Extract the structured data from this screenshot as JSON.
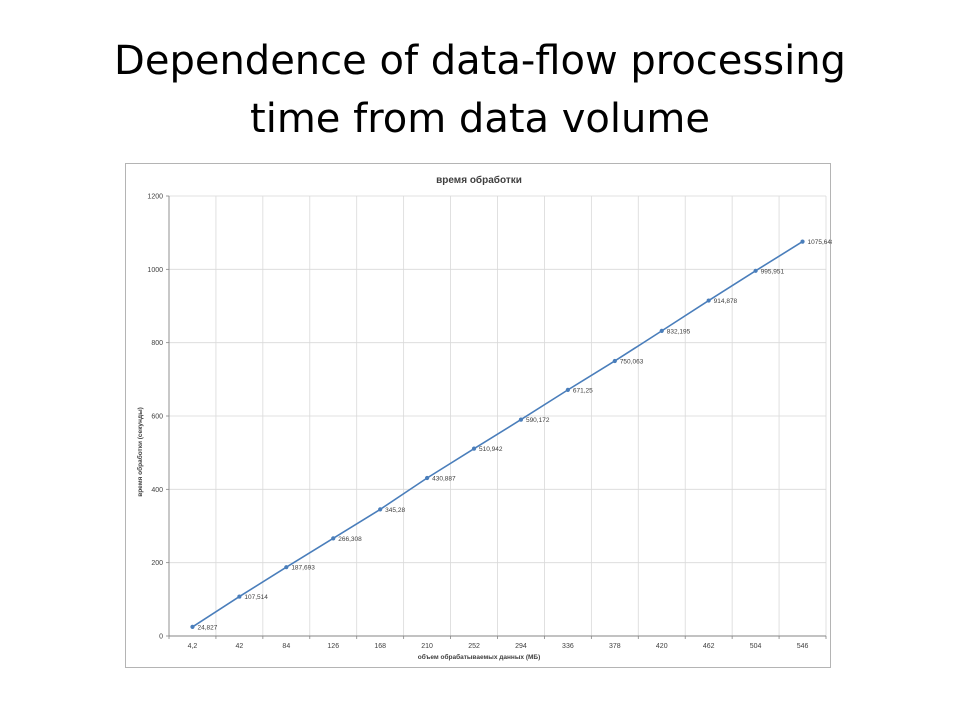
{
  "slide": {
    "title_line1": "Dependence of data-flow processing",
    "title_line2": "time from data volume"
  },
  "chart_data": {
    "type": "line",
    "title": "время обработки",
    "xlabel": "объем обрабатываемых данных (МБ)",
    "ylabel": "время обработки (секунды)",
    "categories": [
      "4,2",
      "42",
      "84",
      "126",
      "168",
      "210",
      "252",
      "294",
      "336",
      "378",
      "420",
      "462",
      "504",
      "546"
    ],
    "series": [
      {
        "values": [
          24.827,
          107.514,
          187.693,
          266.308,
          345.28,
          430.887,
          510.942,
          590.172,
          671.25,
          750.063,
          832.195,
          914.878,
          995.951,
          1075.648
        ],
        "labels": [
          "24,827",
          "107,514",
          "187,693",
          "266,308",
          "345,28",
          "430,887",
          "510,942",
          "590,172",
          "671,25",
          "750,063",
          "832,195",
          "914,878",
          "995,951",
          "1075,648"
        ],
        "color": "#4a7ebb"
      }
    ],
    "y_ticks": [
      "0",
      "200",
      "400",
      "600",
      "800",
      "1000",
      "1200"
    ],
    "ylim": [
      0,
      1200
    ],
    "grid": true,
    "legend": "none"
  }
}
